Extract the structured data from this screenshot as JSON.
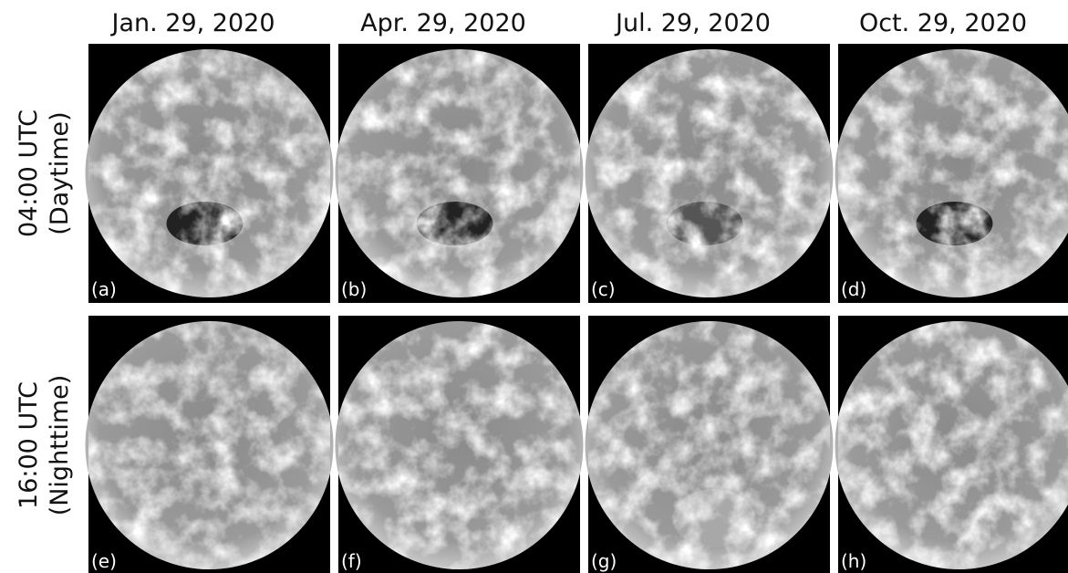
{
  "columns": [
    "Jan. 29, 2020",
    "Apr. 29, 2020",
    "Jul. 29, 2020",
    "Oct. 29, 2020"
  ],
  "rows": [
    [
      "04:00 UTC",
      "(Daytime)"
    ],
    [
      "16:00 UTC",
      "(Nighttime)"
    ]
  ],
  "panels": [
    [
      "(a)",
      "(b)",
      "(c)",
      "(d)"
    ],
    [
      "(e)",
      "(f)",
      "(g)",
      "(h)"
    ]
  ]
}
